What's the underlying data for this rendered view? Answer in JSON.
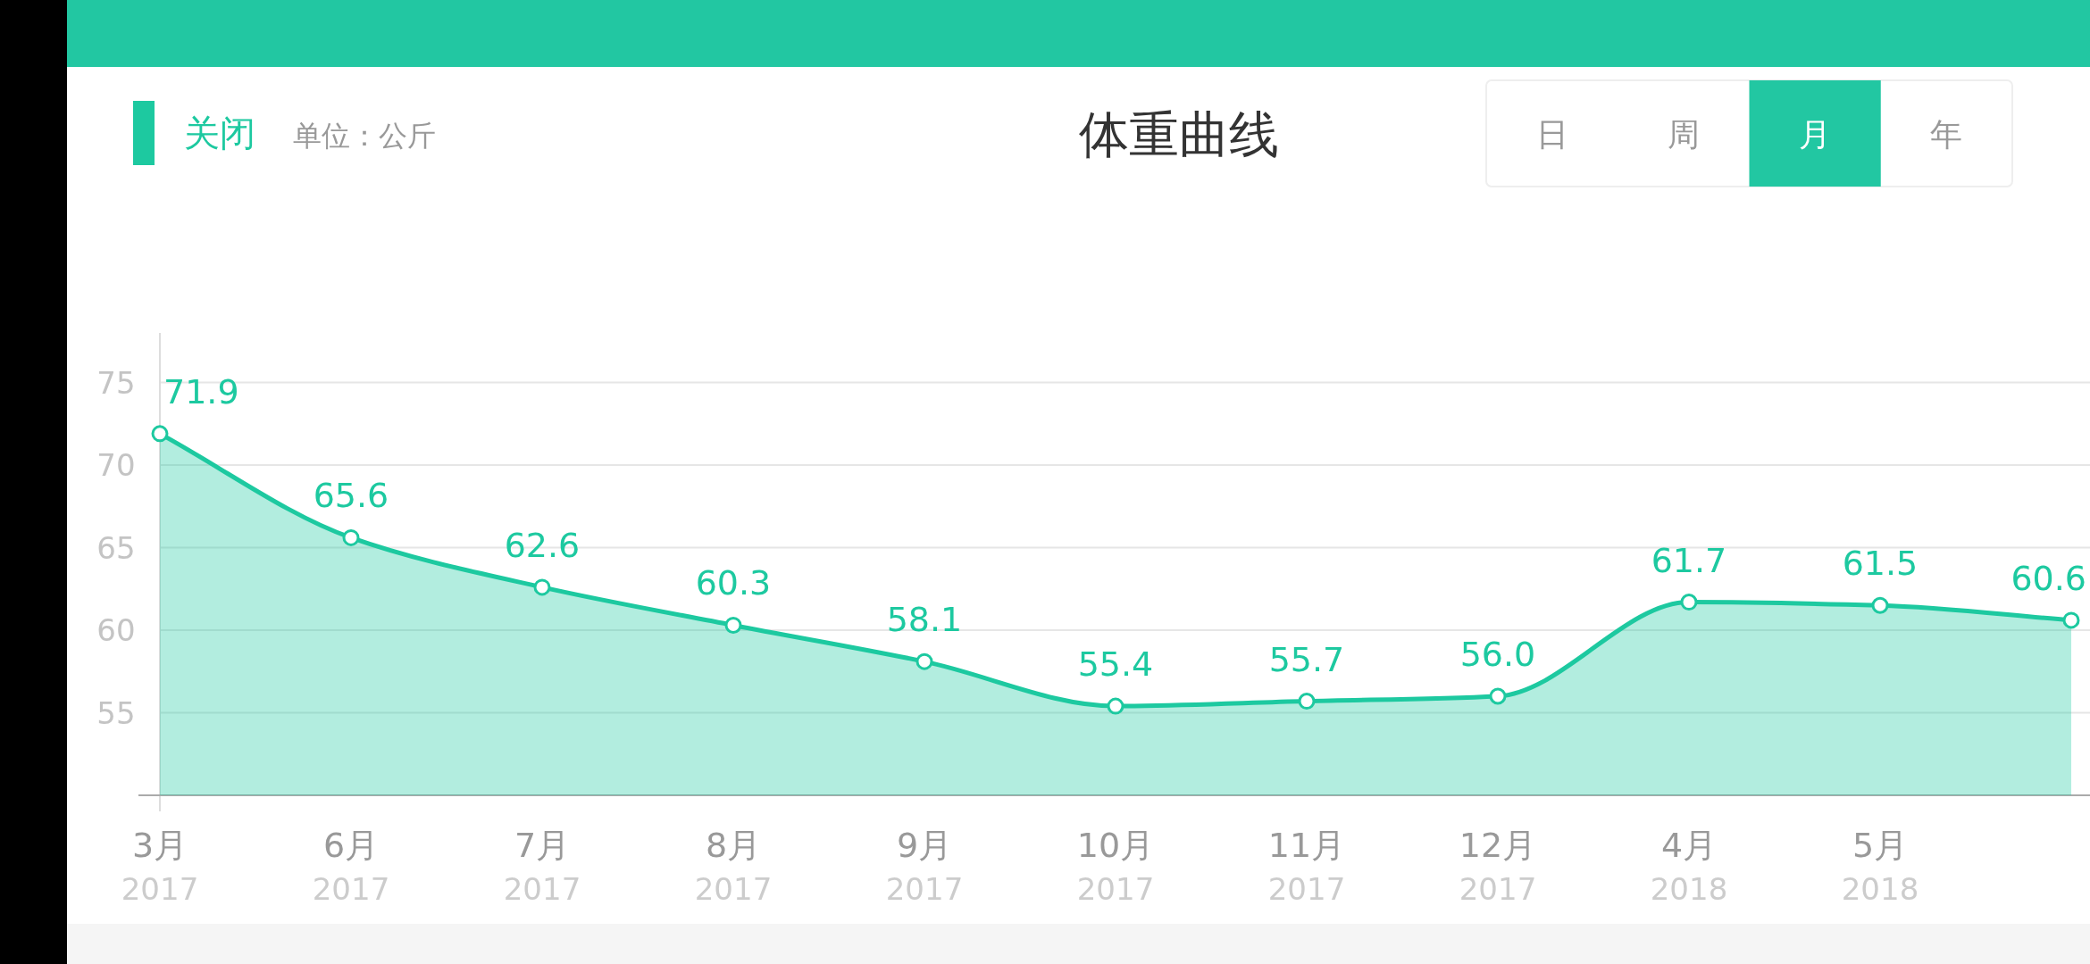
{
  "chart_data": {
    "type": "area",
    "title": "体重曲线",
    "categories": [
      "3月\n2017",
      "6月\n2017",
      "7月\n2017",
      "8月\n2017",
      "9月\n2017",
      "10月\n2017",
      "11月\n2017",
      "12月\n2017",
      "4月\n2018",
      "5月\n2018",
      null
    ],
    "values": [
      71.9,
      65.6,
      62.6,
      60.3,
      58.1,
      55.4,
      55.7,
      56.0,
      61.7,
      61.5,
      60.6
    ],
    "color": "#1dc9a0",
    "ylim": [
      50,
      78
    ],
    "yticks": [
      55,
      60,
      65,
      70,
      75
    ],
    "grid": "y",
    "marker": "circle",
    "value_labels": [
      "71.9",
      "65.6",
      "62.6",
      "60.3",
      "58.1",
      "55.4",
      "55.7",
      "56.0",
      "61.7",
      "61.5",
      "60.6"
    ],
    "annotations": [
      "关闭",
      "单位：公斤",
      "日",
      "周",
      "月",
      "年"
    ]
  }
}
